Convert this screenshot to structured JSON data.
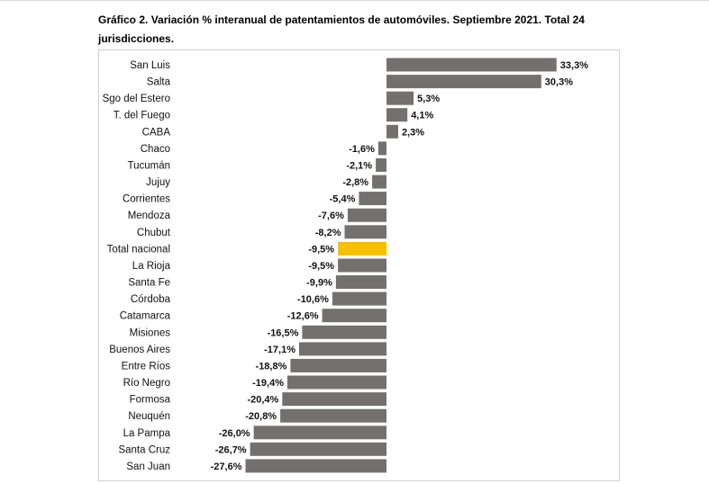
{
  "title": "Gráfico 2. Variación % interanual de patentamientos de automóviles. Septiembre 2021. Total 24 jurisdicciones.",
  "chart_data": {
    "type": "bar",
    "orientation": "horizontal",
    "title": "Gráfico 2. Variación % interanual de patentamientos de automóviles. Septiembre 2021. Total 24 jurisdicciones.",
    "xlabel": "",
    "ylabel": "",
    "categories": [
      "San Luis",
      "Salta",
      "Sgo del Estero",
      "T. del Fuego",
      "CABA",
      "Chaco",
      "Tucumán",
      "Jujuy",
      "Corrientes",
      "Mendoza",
      "Chubut",
      "Total nacional",
      "La Rioja",
      "Santa Fe",
      "Córdoba",
      "Catamarca",
      "Misiones",
      "Buenos Aires",
      "Entre Ríos",
      "Río Negro",
      "Formosa",
      "Neuquén",
      "La Pampa",
      "Santa Cruz",
      "San Juan"
    ],
    "values": [
      33.3,
      30.3,
      5.3,
      4.1,
      2.3,
      -1.6,
      -2.1,
      -2.8,
      -5.4,
      -7.6,
      -8.2,
      -9.5,
      -9.5,
      -9.9,
      -10.6,
      -12.6,
      -16.5,
      -17.1,
      -18.8,
      -19.4,
      -20.4,
      -20.8,
      -26.0,
      -26.7,
      -27.6
    ],
    "labels": [
      "33,3%",
      "30,3%",
      "5,3%",
      "4,1%",
      "2,3%",
      "-1,6%",
      "-2,1%",
      "-2,8%",
      "-5,4%",
      "-7,6%",
      "-8,2%",
      "-9,5%",
      "-9,5%",
      "-9,9%",
      "-10,6%",
      "-12,6%",
      "-16,5%",
      "-17,1%",
      "-18,8%",
      "-19,4%",
      "-20,4%",
      "-20,8%",
      "-26,0%",
      "-26,7%",
      "-27,6%"
    ],
    "highlight_category": "Total nacional",
    "colors": {
      "bar": "#757070",
      "highlight": "#f5c000"
    },
    "grid": false,
    "legend": "none"
  }
}
